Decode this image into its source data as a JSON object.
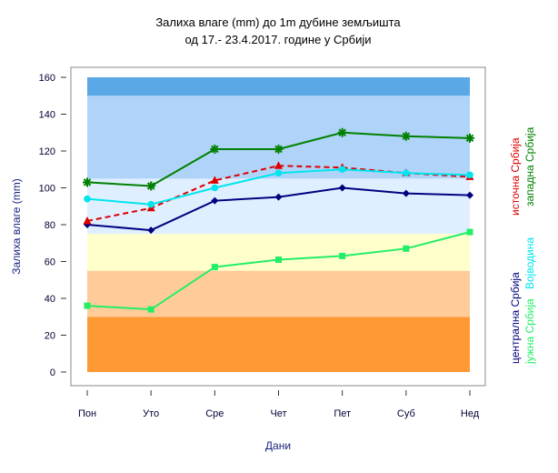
{
  "chart_data": {
    "type": "line",
    "title": "Залиха влаге (mm) до 1m дубине земљишта",
    "subtitle": "од 17.- 23.4.2017. године у Србији",
    "xlabel": "Дани",
    "ylabel": "Залиха влаге (mm)",
    "categories": [
      "Пон",
      "Уто",
      "Сре",
      "Чет",
      "Пет",
      "Суб",
      "Нед"
    ],
    "ylim": [
      0,
      160
    ],
    "yticks": [
      0,
      20,
      40,
      60,
      80,
      100,
      120,
      140,
      160
    ],
    "bands": [
      {
        "from": 0,
        "to": 30,
        "color": "#ff9933"
      },
      {
        "from": 30,
        "to": 55,
        "color": "#ffcc99"
      },
      {
        "from": 55,
        "to": 75,
        "color": "#ffffcc"
      },
      {
        "from": 75,
        "to": 105,
        "color": "#e0efff"
      },
      {
        "from": 105,
        "to": 150,
        "color": "#b0d4f9"
      },
      {
        "from": 150,
        "to": 160,
        "color": "#5aa8e6"
      }
    ],
    "series": [
      {
        "name": "централна Србија",
        "color": "#000080",
        "marker": "diamond",
        "dashed": false,
        "values": [
          80,
          77,
          93,
          95,
          100,
          97,
          96
        ]
      },
      {
        "name": "источна Србија",
        "color": "#dd0000",
        "marker": "triangle",
        "dashed": true,
        "values": [
          82,
          89,
          104,
          112,
          111,
          108,
          106
        ]
      },
      {
        "name": "Војводина",
        "color": "#00e5ee",
        "marker": "circle",
        "dashed": false,
        "values": [
          94,
          91,
          100,
          108,
          110,
          108,
          107
        ]
      },
      {
        "name": "западна Србија",
        "color": "#008000",
        "marker": "asterisk",
        "dashed": false,
        "values": [
          103,
          101,
          121,
          121,
          130,
          128,
          127
        ]
      },
      {
        "name": "јужна Србија",
        "color": "#22ee66",
        "marker": "square",
        "dashed": false,
        "values": [
          36,
          34,
          57,
          61,
          63,
          67,
          76
        ]
      }
    ]
  }
}
